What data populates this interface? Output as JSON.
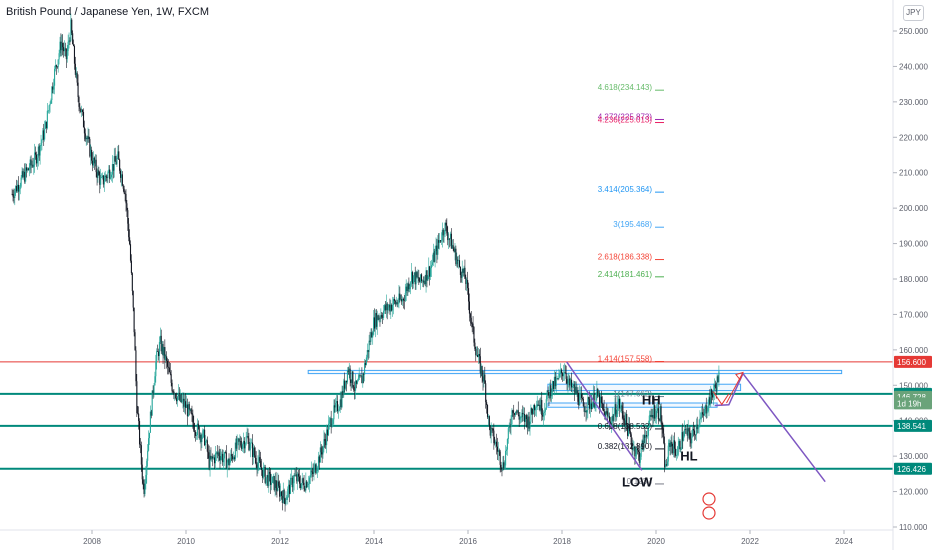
{
  "header": {
    "title": "British Pound / Japanese Yen, 1W, FXCM",
    "currency": "JPY"
  },
  "chart_data": {
    "type": "candlestick",
    "title": "British Pound / Japanese Yen, 1W, FXCM",
    "ylim": [
      110,
      253
    ],
    "xlim": [
      2006.3,
      2025.0
    ],
    "y_ticks": [
      110,
      120,
      130,
      140,
      150,
      160,
      170,
      180,
      190,
      200,
      210,
      220,
      230,
      240,
      250
    ],
    "y_tick_labels": [
      "110.000",
      "120.000",
      "130.000",
      "140.000",
      "150.000",
      "160.000",
      "170.000",
      "180.000",
      "190.000",
      "200.000",
      "210.000",
      "220.000",
      "230.000",
      "240.000",
      "250.000"
    ],
    "x_ticks": [
      2008,
      2010,
      2012,
      2014,
      2016,
      2018,
      2020,
      2022,
      2024
    ],
    "x_tick_labels": [
      "2008",
      "2010",
      "2012",
      "2014",
      "2016",
      "2018",
      "2020",
      "2022",
      "2024"
    ],
    "grid": false,
    "price_path": [
      [
        2006.3,
        204
      ],
      [
        2006.5,
        208
      ],
      [
        2006.8,
        214
      ],
      [
        2007.0,
        222
      ],
      [
        2007.2,
        238
      ],
      [
        2007.35,
        247
      ],
      [
        2007.45,
        242
      ],
      [
        2007.55,
        251
      ],
      [
        2007.7,
        232
      ],
      [
        2007.85,
        222
      ],
      [
        2008.0,
        214
      ],
      [
        2008.2,
        207
      ],
      [
        2008.4,
        211
      ],
      [
        2008.55,
        214
      ],
      [
        2008.7,
        205
      ],
      [
        2008.8,
        190
      ],
      [
        2008.9,
        165
      ],
      [
        2008.95,
        145
      ],
      [
        2009.05,
        128
      ],
      [
        2009.1,
        120
      ],
      [
        2009.2,
        135
      ],
      [
        2009.35,
        156
      ],
      [
        2009.45,
        162
      ],
      [
        2009.55,
        158
      ],
      [
        2009.7,
        150
      ],
      [
        2009.85,
        146
      ],
      [
        2010.0,
        144
      ],
      [
        2010.2,
        138
      ],
      [
        2010.4,
        135
      ],
      [
        2010.5,
        128
      ],
      [
        2010.7,
        131
      ],
      [
        2010.9,
        128
      ],
      [
        2011.1,
        133
      ],
      [
        2011.3,
        135
      ],
      [
        2011.5,
        129
      ],
      [
        2011.7,
        124
      ],
      [
        2011.9,
        122
      ],
      [
        2012.1,
        118
      ],
      [
        2012.3,
        124
      ],
      [
        2012.5,
        122
      ],
      [
        2012.7,
        125
      ],
      [
        2012.9,
        132
      ],
      [
        2013.1,
        141
      ],
      [
        2013.3,
        146
      ],
      [
        2013.45,
        155
      ],
      [
        2013.6,
        149
      ],
      [
        2013.75,
        152
      ],
      [
        2013.9,
        162
      ],
      [
        2014.0,
        168
      ],
      [
        2014.2,
        171
      ],
      [
        2014.4,
        173
      ],
      [
        2014.6,
        174
      ],
      [
        2014.8,
        181
      ],
      [
        2015.0,
        179
      ],
      [
        2015.2,
        183
      ],
      [
        2015.35,
        189
      ],
      [
        2015.5,
        195
      ],
      [
        2015.65,
        190
      ],
      [
        2015.8,
        184
      ],
      [
        2015.95,
        180
      ],
      [
        2016.1,
        165
      ],
      [
        2016.2,
        158
      ],
      [
        2016.35,
        151
      ],
      [
        2016.45,
        138
      ],
      [
        2016.6,
        133
      ],
      [
        2016.75,
        127
      ],
      [
        2016.85,
        135
      ],
      [
        2016.95,
        144
      ],
      [
        2017.1,
        141
      ],
      [
        2017.3,
        140
      ],
      [
        2017.45,
        146
      ],
      [
        2017.6,
        143
      ],
      [
        2017.75,
        149
      ],
      [
        2017.9,
        151
      ],
      [
        2018.05,
        155
      ],
      [
        2018.15,
        150
      ],
      [
        2018.3,
        148
      ],
      [
        2018.45,
        144
      ],
      [
        2018.6,
        145
      ],
      [
        2018.75,
        147
      ],
      [
        2018.9,
        142
      ],
      [
        2019.05,
        140
      ],
      [
        2019.2,
        145
      ],
      [
        2019.35,
        140
      ],
      [
        2019.5,
        133
      ],
      [
        2019.65,
        130
      ],
      [
        2019.8,
        137
      ],
      [
        2019.95,
        143
      ],
      [
        2020.1,
        142
      ],
      [
        2020.2,
        126
      ],
      [
        2020.3,
        134
      ],
      [
        2020.45,
        131
      ],
      [
        2020.6,
        137
      ],
      [
        2020.75,
        135
      ],
      [
        2020.9,
        140
      ],
      [
        2021.0,
        141
      ],
      [
        2021.1,
        145
      ],
      [
        2021.25,
        149
      ],
      [
        2021.35,
        153
      ]
    ],
    "fib_levels": [
      {
        "label": "4.618(234.143)",
        "value": 234.143,
        "color": "#66bb6a"
      },
      {
        "label": "4.272(225.873)",
        "value": 225.873,
        "color": "#9c27b0"
      },
      {
        "label": "4.236(225.013)",
        "value": 225.013,
        "color": "#e91e63"
      },
      {
        "label": "3.414(205.364)",
        "value": 205.364,
        "color": "#2196f3"
      },
      {
        "label": "3(195.468)",
        "value": 195.468,
        "color": "#42a5f5"
      },
      {
        "label": "2.618(186.338)",
        "value": 186.338,
        "color": "#f44336"
      },
      {
        "label": "2.414(181.461)",
        "value": 181.461,
        "color": "#4caf50"
      },
      {
        "label": "1.414(157.558)",
        "value": 157.558,
        "color": "#f44336"
      },
      {
        "label": "1(147.662)",
        "value": 147.662,
        "color": "#607d8b"
      },
      {
        "label": "0.618(138.532)",
        "value": 138.532,
        "color": "#131722"
      },
      {
        "label": "0.382(132.890)",
        "value": 132.89,
        "color": "#131722"
      },
      {
        "label": "0(123.)",
        "value": 123.0,
        "color": "#787b86"
      }
    ],
    "horizontal_lines": [
      {
        "value": 156.6,
        "color": "#e53935",
        "width": 1
      },
      {
        "value": 147.578,
        "color": "#00897b",
        "width": 2
      },
      {
        "value": 138.541,
        "color": "#00897b",
        "width": 2
      },
      {
        "value": 126.426,
        "color": "#00897b",
        "width": 2
      }
    ],
    "price_labels": [
      {
        "text": "156.600",
        "value": 156.6,
        "bg": "#e53935"
      },
      {
        "text": "147.578",
        "value": 147.578,
        "bg": "#00897b"
      },
      {
        "text": "146.728",
        "value": 146.728,
        "bg": "#6aa37a"
      },
      {
        "text": "1d 19h",
        "value": 144.9,
        "bg": "#6aa37a"
      },
      {
        "text": "138.541",
        "value": 138.541,
        "bg": "#00897b"
      },
      {
        "text": "126.426",
        "value": 126.426,
        "bg": "#00897b"
      }
    ],
    "zones": [
      {
        "x0": 2012.6,
        "x1": 2023.95,
        "y0": 153.3,
        "y1": 154.2
      },
      {
        "x0": 2017.7,
        "x1": 2021.8,
        "y0": 148.5,
        "y1": 150.3
      },
      {
        "x0": 2017.7,
        "x1": 2021.3,
        "y0": 143.8,
        "y1": 145.0
      }
    ],
    "projection_path": [
      [
        2021.25,
        144.3
      ],
      [
        2021.55,
        144.5
      ],
      [
        2021.85,
        153.3
      ],
      [
        2023.6,
        122.8
      ]
    ],
    "downtrend_line": [
      [
        2018.1,
        156.6
      ],
      [
        2019.7,
        126.0
      ]
    ],
    "annotations": [
      {
        "text": "HH",
        "x": 2019.9,
        "y": 144.6
      },
      {
        "text": "HL",
        "x": 2020.7,
        "y": 128.8
      },
      {
        "text": "LOW",
        "x": 2019.6,
        "y": 121.5
      }
    ],
    "colors": {
      "up": "#26a69a",
      "down": "#131722",
      "zone_border": "#42a5f5",
      "zone_fill": "#e3f2fd",
      "projection": "#7e57c2",
      "arrow": "#e53935"
    }
  }
}
